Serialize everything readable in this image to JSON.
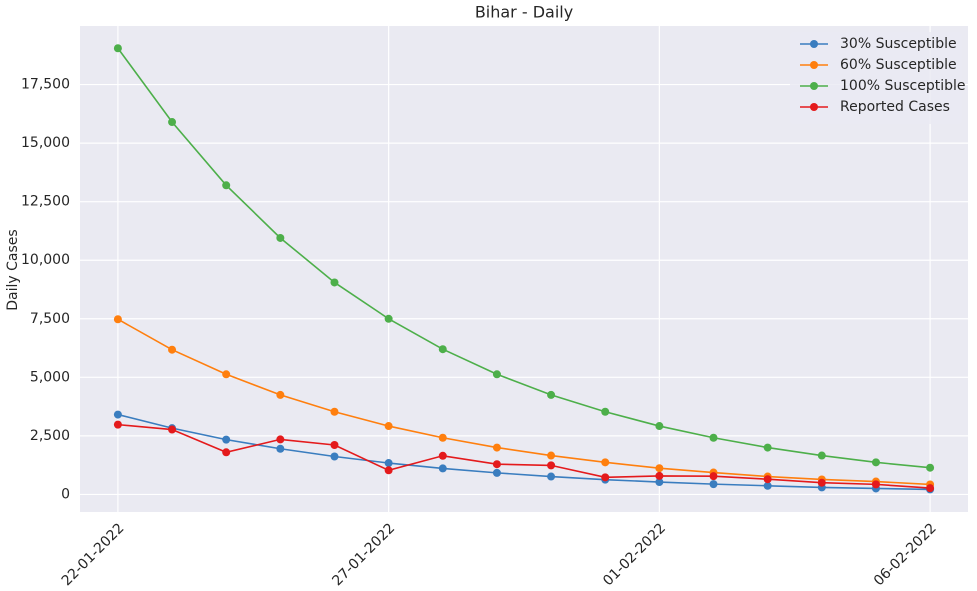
{
  "chart_data": {
    "type": "line",
    "title": "Bihar - Daily",
    "y_label": "Daily Cases",
    "x": [
      "22-01-2022",
      "23-01-2022",
      "24-01-2022",
      "25-01-2022",
      "26-01-2022",
      "27-01-2022",
      "28-01-2022",
      "29-01-2022",
      "30-01-2022",
      "31-01-2022",
      "01-02-2022",
      "02-02-2022",
      "03-02-2022",
      "04-02-2022",
      "05-02-2022",
      "06-02-2022"
    ],
    "xticks": [
      "22-01-2022",
      "27-01-2022",
      "01-02-2022",
      "06-02-2022"
    ],
    "series": [
      {
        "name": "30% Susceptible",
        "color": "#3a7dbf",
        "values": [
          3410,
          2830,
          2340,
          1950,
          1620,
          1340,
          1110,
          920,
          765,
          630,
          530,
          440,
          370,
          300,
          255,
          215
        ]
      },
      {
        "name": "60% Susceptible",
        "color": "#ff7f0e",
        "values": [
          7480,
          6180,
          5130,
          4250,
          3530,
          2920,
          2420,
          2000,
          1660,
          1370,
          1120,
          935,
          765,
          640,
          550,
          425
        ]
      },
      {
        "name": "100% Susceptible",
        "color": "#4daf4a",
        "values": [
          19050,
          15900,
          13200,
          10950,
          9050,
          7500,
          6200,
          5130,
          4250,
          3530,
          2920,
          2420,
          2000,
          1660,
          1370,
          1140
        ]
      },
      {
        "name": "Reported Cases",
        "color": "#e41a1c",
        "values": [
          2980,
          2770,
          1800,
          2350,
          2110,
          1030,
          1650,
          1290,
          1240,
          730,
          790,
          780,
          650,
          500,
          430,
          270
        ]
      }
    ],
    "ylim": [
      -750,
      20000
    ],
    "yticks": [
      0,
      {
        "value": 2500,
        "label": "2,500"
      },
      {
        "value": 5000,
        "label": "5,000"
      },
      {
        "value": 7500,
        "label": "7,500"
      },
      {
        "value": 10000,
        "label": "10,000"
      },
      {
        "value": 12500,
        "label": "12,500"
      },
      {
        "value": 15000,
        "label": "15,000"
      },
      {
        "value": 17500,
        "label": "17,500"
      }
    ],
    "grid": true,
    "legend": "upper right"
  }
}
